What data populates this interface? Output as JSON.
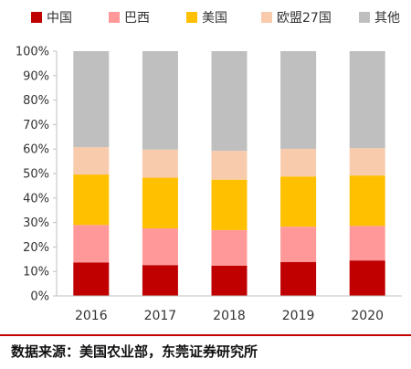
{
  "chart_data": {
    "type": "bar",
    "stacked": true,
    "percent": true,
    "title": "",
    "xlabel": "",
    "ylabel": "",
    "ylim": [
      0,
      100
    ],
    "yticks": [
      "0%",
      "10%",
      "20%",
      "30%",
      "40%",
      "50%",
      "60%",
      "70%",
      "80%",
      "90%",
      "100%"
    ],
    "categories": [
      "2016",
      "2017",
      "2018",
      "2019",
      "2020"
    ],
    "legend_position": "top",
    "grid": false,
    "series": [
      {
        "name": "中国",
        "color": "#c00000",
        "values": [
          13.7,
          12.6,
          12.4,
          13.9,
          14.5
        ]
      },
      {
        "name": "巴西",
        "color": "#ff9999",
        "values": [
          15.3,
          15.0,
          14.5,
          14.4,
          14.1
        ]
      },
      {
        "name": "美国",
        "color": "#ffc000",
        "values": [
          20.6,
          20.7,
          20.6,
          20.5,
          20.6
        ]
      },
      {
        "name": "欧盟27国",
        "color": "#f8cbad",
        "values": [
          11.2,
          11.5,
          11.8,
          11.3,
          11.2
        ]
      },
      {
        "name": "其他",
        "color": "#bfbfbf",
        "values": [
          39.2,
          40.2,
          40.7,
          39.9,
          39.6
        ]
      }
    ]
  },
  "source": "数据来源：美国农业部，东莞证券研究所"
}
